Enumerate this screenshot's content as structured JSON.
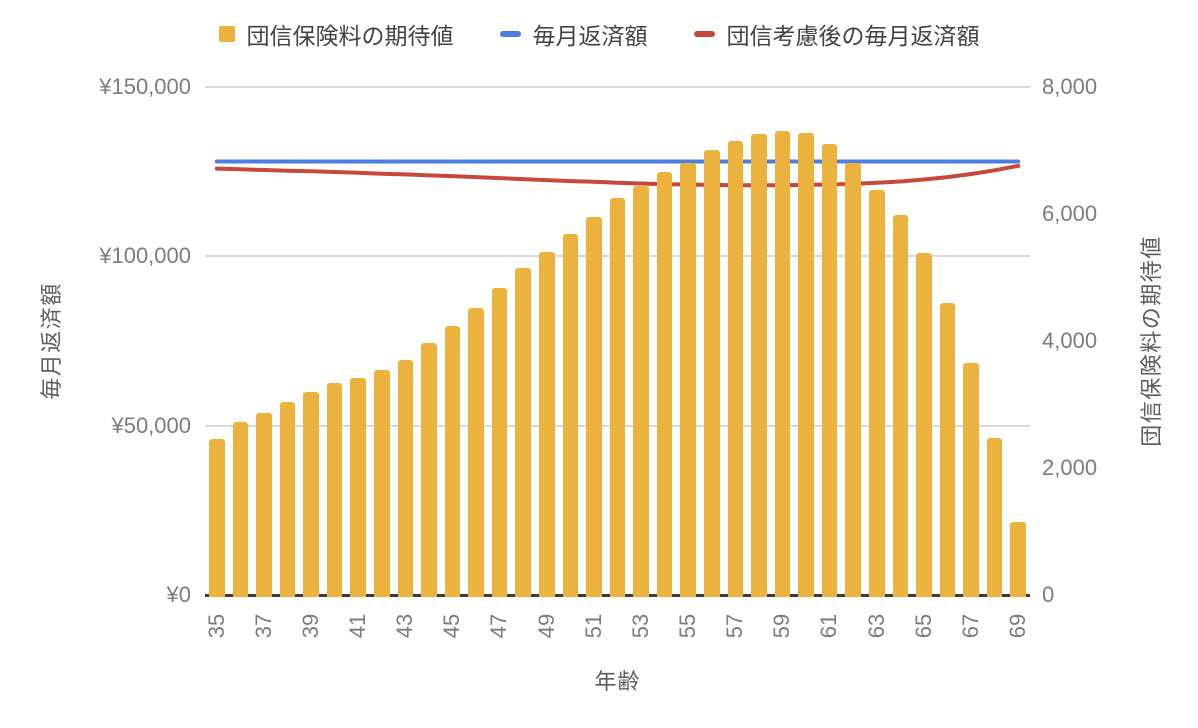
{
  "colors": {
    "background": "#ffffff",
    "bar": "#EBB23E",
    "line_blue": "#4C7DE2",
    "line_red": "#C8473B",
    "gridline": "#d9d9d9",
    "axis_line": "#3b3b3b",
    "tick_text": "#7c7c7c",
    "axis_title_text": "#5d5d5d",
    "legend_text": "#424242"
  },
  "chart_data": {
    "type": "combo-bar-line",
    "title": "",
    "legend_position": "top",
    "grid": true,
    "x": [
      35,
      36,
      37,
      38,
      39,
      40,
      41,
      42,
      43,
      44,
      45,
      46,
      47,
      48,
      49,
      50,
      51,
      52,
      53,
      54,
      55,
      56,
      57,
      58,
      59,
      60,
      61,
      62,
      63,
      64,
      65,
      66,
      67,
      68,
      69
    ],
    "x_axis": {
      "title": "年齢",
      "tick_labels": [
        "35",
        "37",
        "39",
        "41",
        "43",
        "45",
        "47",
        "49",
        "51",
        "53",
        "55",
        "57",
        "59",
        "61",
        "63",
        "65",
        "67",
        "69"
      ],
      "range": [
        35,
        69
      ]
    },
    "left_axis": {
      "title": "毎月返済額",
      "tick_labels": [
        "¥0",
        "¥50,000",
        "¥100,000",
        "¥150,000"
      ],
      "tick_values": [
        0,
        50000,
        100000,
        150000
      ],
      "range": [
        0,
        150000
      ]
    },
    "right_axis": {
      "title": "団信保険料の期待値",
      "tick_labels": [
        "0",
        "2,000",
        "4,000",
        "6,000",
        "8,000"
      ],
      "tick_values": [
        0,
        2000,
        4000,
        6000,
        8000
      ],
      "range": [
        0,
        8000
      ]
    },
    "series": [
      {
        "name": "団信保険料の期待値",
        "type": "bar",
        "axis": "right",
        "color": "#EBB23E",
        "values": [
          2450,
          2720,
          2870,
          3040,
          3200,
          3340,
          3420,
          3540,
          3700,
          3970,
          4240,
          4520,
          4840,
          5150,
          5400,
          5690,
          5950,
          6250,
          6440,
          6660,
          6800,
          7010,
          7150,
          7260,
          7310,
          7280,
          7100,
          6800,
          6380,
          5990,
          5390,
          4600,
          3660,
          2470,
          1150
        ]
      },
      {
        "name": "毎月返済額",
        "type": "line",
        "axis": "left",
        "color": "#4C7DE2",
        "value": 128000
      },
      {
        "name": "団信考慮後の毎月返済額",
        "type": "line",
        "axis": "left",
        "color": "#C8473B",
        "values": [
          125900,
          125700,
          125500,
          125300,
          125100,
          124900,
          124700,
          124400,
          124200,
          123900,
          123700,
          123400,
          123100,
          122800,
          122500,
          122200,
          122000,
          121700,
          121500,
          121300,
          121200,
          121100,
          121000,
          121000,
          121000,
          121100,
          121200,
          121400,
          121700,
          122100,
          122700,
          123400,
          124300,
          125400,
          126700
        ]
      }
    ]
  }
}
